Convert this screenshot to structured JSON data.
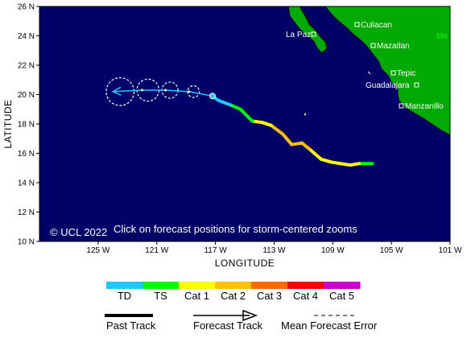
{
  "map": {
    "axes": {
      "x_title": "LONGITUDE",
      "y_title": "LATITUDE",
      "x_ticks": [
        "125 W",
        "121 W",
        "117 W",
        "113 W",
        "109 W",
        "105 W",
        "101 W"
      ],
      "y_ticks": [
        "26 N",
        "24 N",
        "22 N",
        "20 N",
        "18 N",
        "16 N",
        "14 N",
        "12 N",
        "10 N"
      ]
    },
    "cities": [
      "La Paz",
      "Culiacan",
      "Mazatlan",
      "Tepic",
      "Guadalajara",
      "Manzanillo"
    ],
    "land_partial_label": "Me",
    "copyright": "© UCL 2022",
    "instruction": "Click on forecast positions for storm-centered zooms"
  },
  "legend": {
    "categories": [
      {
        "label": "TD",
        "color": "#1ec8ff"
      },
      {
        "label": "TS",
        "color": "#00ff00"
      },
      {
        "label": "Cat 1",
        "color": "#ffff00"
      },
      {
        "label": "Cat 2",
        "color": "#ffc000"
      },
      {
        "label": "Cat 3",
        "color": "#ff6a00"
      },
      {
        "label": "Cat 4",
        "color": "#ff0000"
      },
      {
        "label": "Cat 5",
        "color": "#cc00cc"
      }
    ],
    "past_track": "Past Track",
    "forecast_track": "Forecast Track",
    "mean_forecast_error": "Mean Forecast Error"
  },
  "colors": {
    "ocean": "#000066",
    "land": "#00aa00",
    "forecast": "#1ec8ff",
    "land_label": "#00ff00"
  },
  "track": {
    "past": [
      {
        "lon": 106.3,
        "lat": 15.3,
        "cat": "TS"
      },
      {
        "lon": 107.2,
        "lat": 15.3,
        "cat": "TS"
      },
      {
        "lon": 107.8,
        "lat": 15.2,
        "cat": "Cat 1"
      },
      {
        "lon": 108.5,
        "lat": 15.3,
        "cat": "Cat 1"
      },
      {
        "lon": 109.1,
        "lat": 15.4,
        "cat": "Cat 1"
      },
      {
        "lon": 109.8,
        "lat": 15.6,
        "cat": "Cat 1"
      },
      {
        "lon": 110.6,
        "lat": 16.3,
        "cat": "Cat 1"
      },
      {
        "lon": 111.1,
        "lat": 16.7,
        "cat": "Cat 2"
      },
      {
        "lon": 111.8,
        "lat": 16.6,
        "cat": "Cat 2"
      },
      {
        "lon": 112.4,
        "lat": 17.3,
        "cat": "Cat 2"
      },
      {
        "lon": 113.2,
        "lat": 17.9,
        "cat": "Cat 2"
      },
      {
        "lon": 113.8,
        "lat": 18.1,
        "cat": "Cat 1"
      },
      {
        "lon": 114.5,
        "lat": 18.2,
        "cat": "Cat 1"
      },
      {
        "lon": 115.3,
        "lat": 19.0,
        "cat": "TS"
      },
      {
        "lon": 116.0,
        "lat": 19.3,
        "cat": "TS"
      },
      {
        "lon": 116.8,
        "lat": 19.6,
        "cat": "TD"
      },
      {
        "lon": 117.2,
        "lat": 19.9,
        "cat": "TD"
      }
    ],
    "forecast": [
      {
        "lon": 117.2,
        "lat": 19.9
      },
      {
        "lon": 118.8,
        "lat": 20.2
      },
      {
        "lon": 120.4,
        "lat": 20.3
      },
      {
        "lon": 122.0,
        "lat": 20.3
      },
      {
        "lon": 124.0,
        "lat": 20.2
      }
    ],
    "error_circles": [
      {
        "lon": 118.5,
        "lat": 20.2,
        "radius_deg": 0.4
      },
      {
        "lon": 120.1,
        "lat": 20.3,
        "radius_deg": 0.55
      },
      {
        "lon": 121.6,
        "lat": 20.3,
        "radius_deg": 0.75
      },
      {
        "lon": 123.5,
        "lat": 20.2,
        "radius_deg": 0.95
      }
    ]
  }
}
